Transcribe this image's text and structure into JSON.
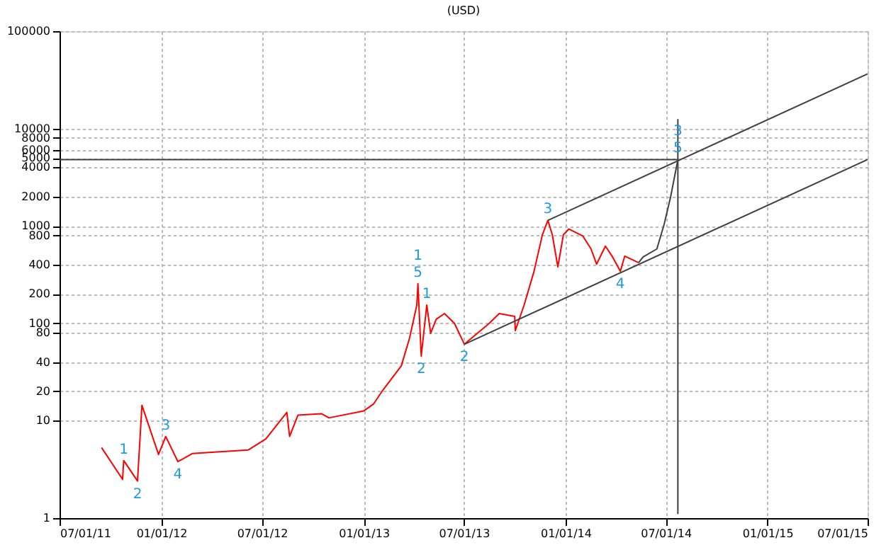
{
  "chart_data": {
    "type": "line",
    "title": "(USD)",
    "series": [
      {
        "color": "#ff0000",
        "x": [
          "2011-09-15",
          "2011-10-23",
          "2011-10-25",
          "2011-11-19",
          "2011-11-27",
          "2011-12-27",
          "2012-01-09",
          "2012-01-31",
          "2012-02-26",
          "2012-06-06",
          "2012-07-08",
          "2012-08-15",
          "2012-08-20",
          "2012-09-04",
          "2012-10-17",
          "2012-10-30",
          "2013-01-01",
          "2013-01-19",
          "2013-02-03",
          "2013-03-10",
          "2013-03-25",
          "2013-04-07",
          "2013-04-09",
          "2013-04-15",
          "2013-04-25",
          "2013-05-02",
          "2013-05-12",
          "2013-05-27",
          "2013-06-14",
          "2013-07-02",
          "2013-08-16",
          "2013-09-03",
          "2013-10-01",
          "2013-10-02",
          "2013-10-18",
          "2013-11-05",
          "2013-11-20",
          "2013-11-30",
          "2013-12-08",
          "2013-12-18",
          "2013-12-28",
          "2014-01-07",
          "2014-02-01",
          "2014-02-16",
          "2014-02-26",
          "2014-03-14",
          "2014-03-26",
          "2014-04-10",
          "2014-04-18",
          "2014-05-13"
        ],
        "values": [
          5.3,
          2.5,
          3.9,
          2.4,
          14.4,
          4.5,
          6.9,
          3.8,
          4.6,
          5.0,
          6.5,
          12.2,
          6.9,
          11.4,
          11.8,
          10.7,
          12.6,
          14.9,
          20,
          36.6,
          71,
          154,
          255,
          46,
          154,
          79,
          110,
          126,
          100,
          61,
          100,
          126,
          118,
          84,
          154,
          343,
          810,
          1140,
          810,
          380,
          810,
          930,
          790,
          580,
          405,
          620,
          490,
          343,
          490,
          420
        ]
      },
      {
        "color": "#404040",
        "x": [
          "2014-05-13",
          "2014-05-21",
          "2014-06-15",
          "2014-06-28",
          "2014-07-10",
          "2014-07-23"
        ],
        "values": [
          420,
          480,
          580,
          1030,
          2000,
          4800
        ]
      },
      {
        "color": "#404040",
        "x": [
          "2013-11-30",
          "2015-07-01"
        ],
        "values": [
          1140,
          36400
        ]
      },
      {
        "color": "#404040",
        "x": [
          "2013-07-02",
          "2015-07-01"
        ],
        "values": [
          61,
          4800
        ]
      },
      {
        "color": "#404040",
        "x": [
          "2011-07-01",
          "2014-07-23"
        ],
        "values": [
          4800,
          4800
        ]
      },
      {
        "color": "#404040",
        "x": [
          "2014-07-23",
          "2014-07-23"
        ],
        "values": [
          12500,
          1.1
        ]
      }
    ],
    "log": "y",
    "grid": true,
    "marker": "none",
    "line_style": "solid",
    "xlim": [
      "2011-07-01",
      "2015-07-01"
    ],
    "xticks": [
      {
        "value": "2011-07-01",
        "label": "07/01/11"
      },
      {
        "value": "2012-01-01",
        "label": "01/01/12"
      },
      {
        "value": "2012-07-01",
        "label": "07/01/12"
      },
      {
        "value": "2013-01-01",
        "label": "01/01/13"
      },
      {
        "value": "2013-07-01",
        "label": "07/01/13"
      },
      {
        "value": "2014-01-01",
        "label": "01/01/14"
      },
      {
        "value": "2014-07-01",
        "label": "07/01/14"
      },
      {
        "value": "2015-01-01",
        "label": "01/01/15"
      },
      {
        "value": "2015-07-01",
        "label": "07/01/15"
      }
    ],
    "ylim": [
      1,
      100000
    ],
    "yticks": [
      1,
      10,
      20,
      40,
      80,
      100,
      200,
      400,
      800,
      1000,
      2000,
      4000,
      5000,
      6000,
      8000,
      10000,
      100000
    ],
    "annotations": [
      {
        "text": "1",
        "x": "2011-10-25",
        "y": 3.9
      },
      {
        "text": "2",
        "x": "2011-11-19",
        "y": 2.4
      },
      {
        "text": "3",
        "x": "2012-01-09",
        "y": 6.9
      },
      {
        "text": "4",
        "x": "2012-01-31",
        "y": 3.8
      },
      {
        "text": "5",
        "x": "2013-04-09",
        "y": 255
      },
      {
        "text": "1",
        "x": "2013-04-25",
        "y": 154
      },
      {
        "text": "1",
        "x": "2013-04-09",
        "y": 255
      },
      {
        "text": "2",
        "x": "2013-04-15",
        "y": 46
      },
      {
        "text": "2",
        "x": "2013-07-02",
        "y": 61
      },
      {
        "text": "3",
        "x": "2013-11-30",
        "y": 1140
      },
      {
        "text": "4",
        "x": "2014-04-10",
        "y": 343
      },
      {
        "text": "5",
        "x": "2014-07-23",
        "y": 4800
      },
      {
        "text": "3",
        "x": "2014-07-23",
        "y": 4800
      }
    ]
  }
}
